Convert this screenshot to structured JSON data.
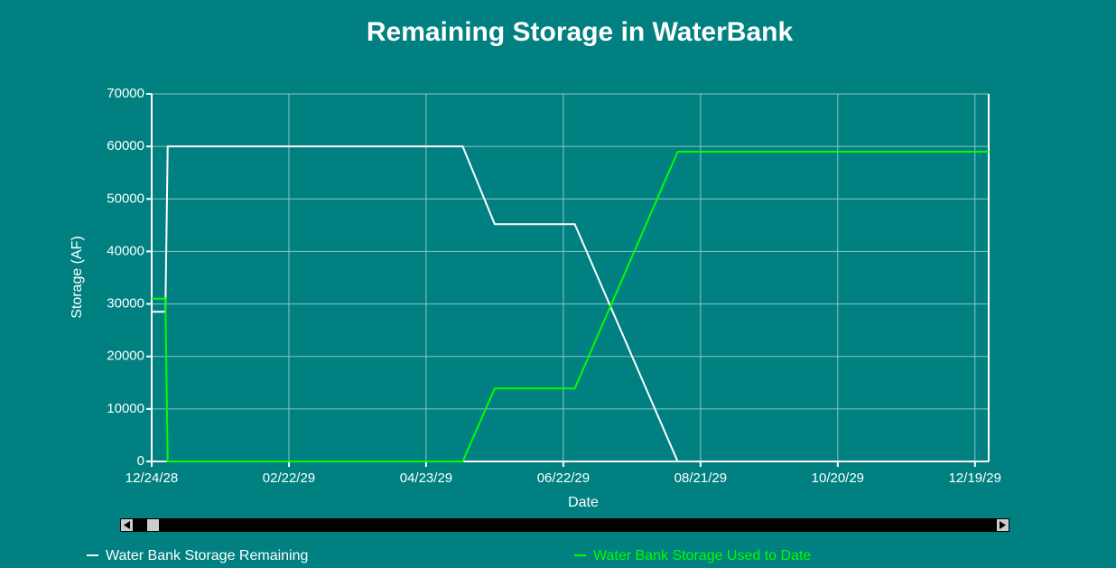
{
  "chart_data": {
    "type": "line",
    "title": "Remaining Storage in WaterBank",
    "x_label": "Date",
    "y_label": "Storage (AF)",
    "x": [
      "2028-12-24",
      "2028-12-30",
      "2028-12-31",
      "2029-05-09",
      "2029-05-23",
      "2029-06-27",
      "2029-08-11",
      "2029-12-25"
    ],
    "series": [
      {
        "name": "Water Bank Storage Remaining",
        "color": "#ffffff",
        "values": [
          28500,
          28500,
          60000,
          60000,
          45200,
          45200,
          0,
          0
        ]
      },
      {
        "name": "Water Bank Storage Used to Date",
        "color": "#00ff00",
        "values": [
          31000,
          31000,
          0,
          0,
          13900,
          13900,
          59000,
          59000
        ]
      }
    ],
    "xlim": [
      "2028-12-24",
      "2029-12-25"
    ],
    "xticks": [
      {
        "value": "2028-12-24",
        "label": "12/24/28"
      },
      {
        "value": "2029-02-22",
        "label": "02/22/29"
      },
      {
        "value": "2029-04-23",
        "label": "04/23/29"
      },
      {
        "value": "2029-06-22",
        "label": "06/22/29"
      },
      {
        "value": "2029-08-21",
        "label": "08/21/29"
      },
      {
        "value": "2029-10-20",
        "label": "10/20/29"
      },
      {
        "value": "2029-12-19",
        "label": "12/19/29"
      }
    ],
    "ylim": [
      0,
      70000
    ],
    "yticks": [
      0,
      10000,
      20000,
      30000,
      40000,
      50000,
      60000,
      70000
    ],
    "grid": true
  }
}
